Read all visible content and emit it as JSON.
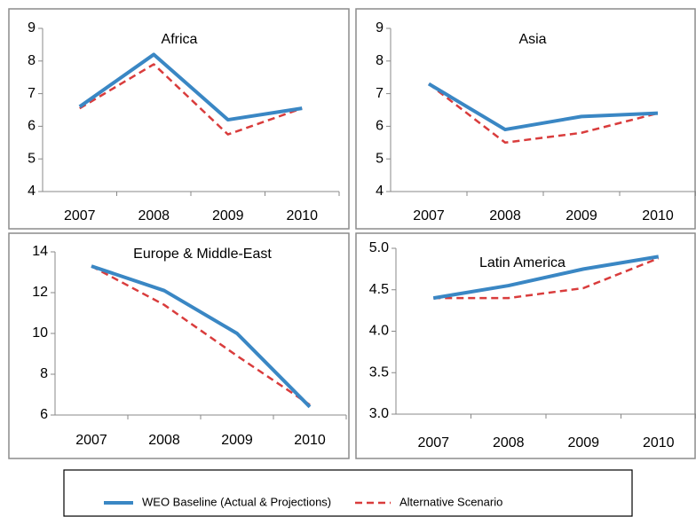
{
  "chart_data": [
    {
      "type": "line",
      "title": "Africa",
      "categories": [
        "2007",
        "2008",
        "2009",
        "2010"
      ],
      "series": [
        {
          "name": "WEO Baseline (Actual & Projections)",
          "color": "#3a87c4",
          "values": [
            6.6,
            8.2,
            6.2,
            6.55
          ]
        },
        {
          "name": "Alternative Scenario",
          "color": "#d93c3c",
          "values": [
            6.55,
            7.9,
            5.75,
            6.55
          ]
        }
      ],
      "ylim": [
        4,
        9
      ],
      "yticks": [
        4,
        5,
        6,
        7,
        8,
        9
      ]
    },
    {
      "type": "line",
      "title": "Asia",
      "categories": [
        "2007",
        "2008",
        "2009",
        "2010"
      ],
      "series": [
        {
          "color": "#3a87c4",
          "values": [
            7.3,
            5.9,
            6.3,
            6.4
          ]
        },
        {
          "color": "#d93c3c",
          "values": [
            7.3,
            5.5,
            5.8,
            6.4
          ]
        }
      ],
      "ylim": [
        4,
        9
      ],
      "yticks": [
        4,
        5,
        6,
        7,
        8,
        9
      ]
    },
    {
      "type": "line",
      "title": "Europe & Middle-East",
      "categories": [
        "2007",
        "2008",
        "2009",
        "2010"
      ],
      "series": [
        {
          "color": "#3a87c4",
          "values": [
            13.3,
            12.1,
            10.0,
            6.4
          ]
        },
        {
          "color": "#d93c3c",
          "values": [
            13.3,
            11.4,
            8.9,
            6.5
          ]
        }
      ],
      "ylim": [
        6,
        14
      ],
      "yticks": [
        6,
        8,
        10,
        12,
        14
      ]
    },
    {
      "type": "line",
      "title": "Latin America",
      "categories": [
        "2007",
        "2008",
        "2009",
        "2010"
      ],
      "series": [
        {
          "color": "#3a87c4",
          "values": [
            4.4,
            4.55,
            4.75,
            4.9
          ]
        },
        {
          "color": "#d93c3c",
          "values": [
            4.4,
            4.4,
            4.52,
            4.88
          ]
        }
      ],
      "ylim": [
        3,
        5
      ],
      "yticks": [
        {
          "value": 3,
          "label": "3.0"
        },
        {
          "value": 3.5,
          "label": "3.5"
        },
        {
          "value": 4,
          "label": "4.0"
        },
        {
          "value": 4.5,
          "label": "4.5"
        },
        {
          "value": 5,
          "label": "5.0"
        }
      ]
    }
  ]
}
